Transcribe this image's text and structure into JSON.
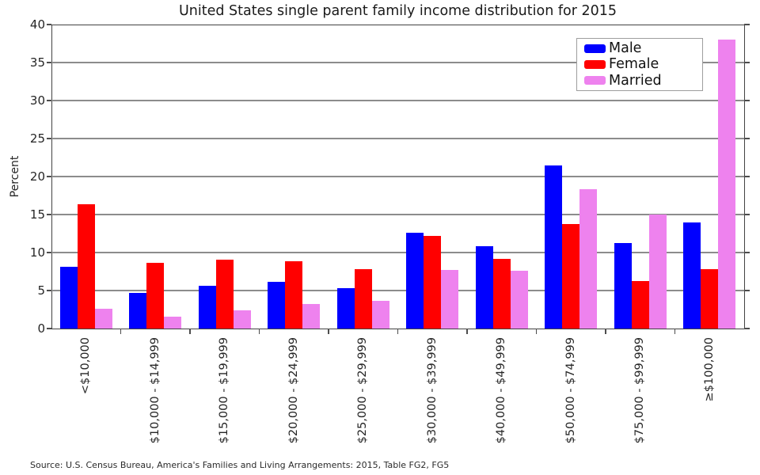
{
  "chart_data": {
    "type": "bar",
    "title": "United States single parent family income distribution for 2015",
    "xlabel": "",
    "ylabel": "Percent",
    "ylim": [
      0,
      40
    ],
    "yticks": [
      0,
      5,
      10,
      15,
      20,
      25,
      30,
      35,
      40
    ],
    "grid": "horizontal-only",
    "legend_position": "top-right-inside",
    "categories": [
      "<$10,000",
      "$10,000 - $14,999",
      "$15,000 - $19,999",
      "$20,000 - $24,999",
      "$25,000 - $29,999",
      "$30,000 - $39,999",
      "$40,000 - $49,999",
      "$50,000 - $74,999",
      "$75,000 - $99,999",
      "≥$100,000"
    ],
    "series": [
      {
        "name": "Male",
        "color": "#0000FF",
        "values": [
          8.1,
          4.7,
          5.6,
          6.1,
          5.3,
          12.6,
          10.8,
          21.5,
          11.3,
          14.0
        ]
      },
      {
        "name": "Female",
        "color": "#FF0000",
        "values": [
          16.4,
          8.6,
          9.1,
          8.9,
          7.8,
          12.2,
          9.2,
          13.8,
          6.2,
          7.8
        ]
      },
      {
        "name": "Married",
        "color": "#EE82EE",
        "values": [
          2.6,
          1.6,
          2.4,
          3.2,
          3.6,
          7.7,
          7.6,
          18.3,
          15.0,
          38.0
        ]
      }
    ]
  },
  "source_note": "Source: U.S. Census Bureau, America's Families and Living Arrangements: 2015, Table FG2, FG5",
  "colors": {
    "plot_border": "#424242",
    "gridline": "#8c8c8c",
    "tick": "#4d4d4d",
    "text": "#262626"
  }
}
